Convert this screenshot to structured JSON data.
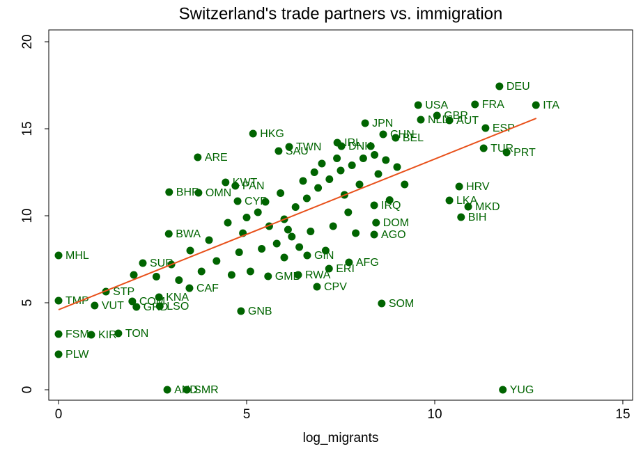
{
  "chart_data": {
    "type": "scatter",
    "title": "Switzerland's trade partners vs. immigration",
    "x_label": "log_migrants",
    "xlim": [
      -0.26,
      15.26
    ],
    "ylim": [
      -0.6,
      20.68
    ],
    "xticks": [
      0,
      5,
      10,
      15
    ],
    "yticks": [
      0,
      5,
      10,
      15,
      20
    ],
    "grid": false,
    "series": [
      {
        "color": "#006400",
        "x": [
          11.72,
          12.69,
          11.07,
          9.56,
          10.06,
          9.63,
          10.39,
          11.35,
          8.15,
          8.63,
          8.96,
          11.3,
          11.91,
          5.17,
          3.7,
          5.85,
          6.13,
          7.41,
          7.52,
          4.44,
          4.7,
          2.94,
          3.72,
          4.76,
          10.65,
          10.39,
          10.89,
          10.7,
          8.39,
          8.44,
          8.39,
          2.93,
          0,
          7.72,
          7.19,
          6.61,
          6.37,
          6.87,
          8.59,
          4.85,
          1.26,
          0,
          0.96,
          1.96,
          2.07,
          2.69,
          2.67,
          3.48,
          0,
          0.87,
          1.59,
          0,
          2.89,
          3.41,
          11.81,
          5.57,
          2.24,
          4.5,
          5.0,
          5.3,
          5.6,
          6.0,
          6.3,
          6.6,
          6.9,
          7.2,
          7.5,
          7.8,
          8.1,
          8.4,
          8.7,
          7.0,
          6.5,
          7.6,
          8.0,
          8.5,
          9.0,
          5.8,
          6.2,
          6.7,
          7.3,
          7.9,
          4.0,
          3.5,
          3.0,
          2.6,
          3.8,
          4.2,
          4.8,
          5.4,
          6.0,
          6.4,
          5.1,
          4.6,
          3.2,
          2.0,
          5.9,
          6.8,
          7.4,
          8.3,
          9.2,
          8.8,
          7.7,
          6.1,
          5.5,
          4.9,
          7.1
        ],
        "y": [
          17.44,
          16.36,
          16.4,
          16.36,
          15.76,
          15.52,
          15.48,
          15.04,
          15.32,
          14.68,
          14.48,
          13.88,
          13.64,
          14.72,
          13.36,
          13.72,
          13.96,
          14.2,
          14.0,
          11.92,
          11.72,
          11.36,
          11.32,
          10.84,
          11.68,
          10.88,
          10.52,
          9.92,
          10.6,
          9.6,
          8.92,
          8.96,
          7.72,
          7.32,
          6.96,
          7.72,
          6.6,
          5.92,
          4.96,
          4.52,
          5.64,
          5.12,
          4.84,
          5.08,
          4.76,
          4.8,
          5.32,
          5.84,
          3.2,
          3.16,
          3.24,
          2.04,
          0,
          0,
          0,
          6.52,
          7.28,
          9.6,
          9.9,
          10.2,
          9.4,
          9.8,
          10.5,
          11.0,
          11.6,
          12.1,
          12.6,
          12.9,
          13.3,
          13.5,
          13.2,
          13.0,
          12.0,
          11.2,
          11.8,
          12.4,
          12.8,
          8.4,
          8.8,
          9.1,
          9.4,
          9.0,
          8.6,
          8.0,
          7.2,
          6.5,
          6.8,
          7.4,
          7.9,
          8.1,
          7.6,
          8.2,
          6.8,
          6.6,
          6.3,
          6.6,
          11.3,
          12.5,
          13.3,
          14.0,
          11.8,
          10.9,
          10.2,
          9.2,
          10.8,
          9.0,
          8.0
        ],
        "labels": [
          "DEU",
          "ITA",
          "FRA",
          "USA",
          "GBR",
          "NLD",
          "AUT",
          "ESP",
          "JPN",
          "CHN",
          "BEL",
          "TUR",
          "PRT",
          "HKG",
          "ARE",
          "SAU",
          "TWN",
          "IRL",
          "DNK",
          "KWT",
          "PAN",
          "BHR",
          "OMN",
          "CYP",
          "HRV",
          "LKA",
          "MKD",
          "BIH",
          "IRQ",
          "DOM",
          "AGO",
          "BWA",
          "MHL",
          "AFG",
          "ERI",
          "GIN",
          "RWA",
          "CPV",
          "SOM",
          "GNB",
          "STP",
          "TMP",
          "VUT",
          "COM",
          "GRD",
          "LSO",
          "KNA",
          "CAF",
          "FSM",
          "KIR",
          "TON",
          "PLW",
          "AND",
          "SMR",
          "YUG",
          "GMB",
          "SUR",
          null,
          null,
          null,
          null,
          null,
          null,
          null,
          null,
          null,
          null,
          null,
          null,
          null,
          null,
          null,
          null,
          null,
          null,
          null,
          null,
          null,
          null,
          null,
          null,
          null,
          null,
          null,
          null,
          null,
          null,
          null,
          null,
          null,
          null,
          null,
          null,
          null,
          null,
          null,
          null,
          null,
          null,
          null,
          null,
          null,
          null,
          null,
          null,
          null,
          null
        ]
      }
    ],
    "fit": {
      "color": "#e8501a",
      "x": [
        0,
        12.7
      ],
      "y": [
        4.6,
        15.6
      ]
    }
  }
}
